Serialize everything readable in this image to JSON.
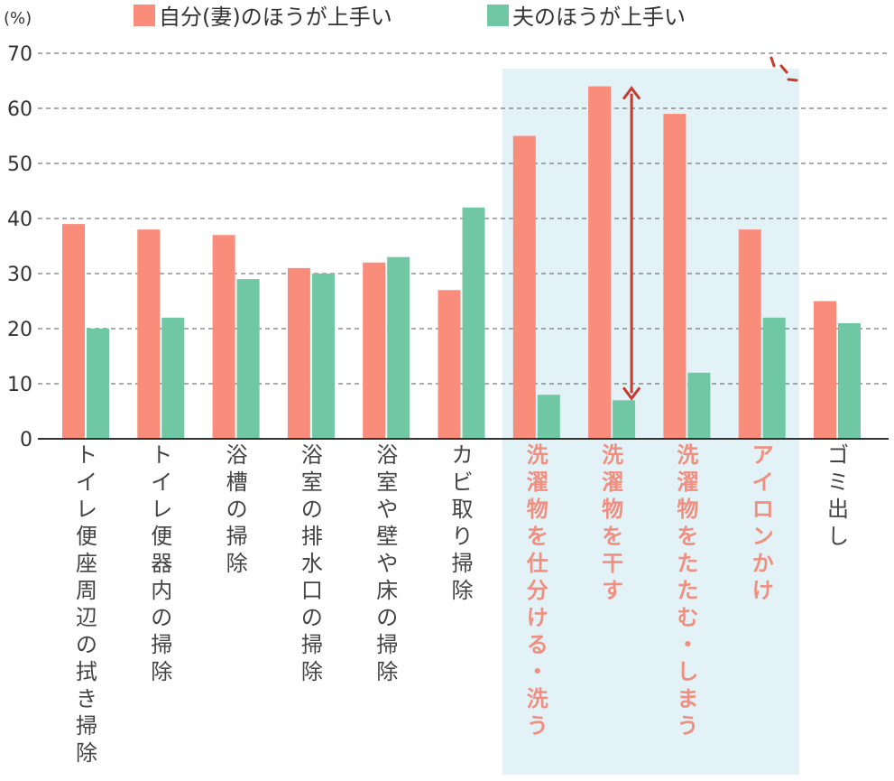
{
  "chart_data": {
    "type": "bar",
    "unit_label": "(%)",
    "ylim": [
      0,
      70
    ],
    "yticks": [
      0,
      10,
      20,
      30,
      40,
      50,
      60,
      70
    ],
    "grid": true,
    "legend_position": "top",
    "categories": [
      "トイレ便座周辺の拭き掃除",
      "トイレ便器内の掃除",
      "浴槽の掃除",
      "浴室の排水口の掃除",
      "浴室や壁や床の掃除",
      "カビ取り掃除",
      "洗濯物を仕分ける・洗う",
      "洗濯物を干す",
      "洗濯物をたたむ・しまう",
      "アイロンかけ",
      "ゴミ出し"
    ],
    "highlighted": [
      6,
      7,
      8,
      9
    ],
    "series": [
      {
        "name": "自分(妻)のほうが上手い",
        "color": "#fa8c7c",
        "values": [
          39,
          38,
          37,
          31,
          32,
          27,
          55,
          64,
          59,
          38,
          25
        ]
      },
      {
        "name": "夫のほうが上手い",
        "color": "#6fc8a3",
        "values": [
          20,
          22,
          29,
          30,
          33,
          42,
          8,
          7,
          12,
          22,
          21
        ]
      }
    ],
    "highlight_color": "#e2f2f7",
    "arrow_color": "#c83a2c",
    "label_highlight_color": "#f08f7f"
  }
}
